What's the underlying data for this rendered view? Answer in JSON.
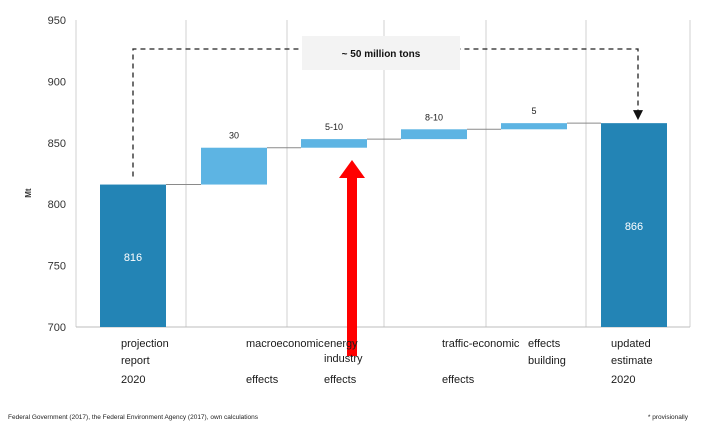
{
  "chart_data": {
    "type": "bar",
    "subtype": "waterfall",
    "ylabel": "Mt",
    "ylim": [
      700,
      950
    ],
    "yticks": [
      700,
      750,
      800,
      850,
      900,
      950
    ],
    "grid": "vertical",
    "bars": [
      {
        "kind": "total",
        "base": 0,
        "value": 816,
        "label": "816",
        "category_lines": [
          "projection",
          "report",
          "2020"
        ]
      },
      {
        "kind": "delta",
        "base": 816,
        "value": 846,
        "label": "30",
        "category_lines": [
          "macroeconomic",
          "",
          "effects"
        ]
      },
      {
        "kind": "delta",
        "base": 846,
        "value": 853,
        "label": "5-10",
        "category_lines": [
          "energy",
          "industry",
          "effects"
        ]
      },
      {
        "kind": "delta",
        "base": 853,
        "value": 861,
        "label": "8-10",
        "category_lines": [
          "traffic-economic",
          "",
          "effects"
        ]
      },
      {
        "kind": "delta",
        "base": 861,
        "value": 866,
        "label": "5",
        "category_lines": [
          "effects",
          "building",
          ""
        ]
      },
      {
        "kind": "total",
        "base": 0,
        "value": 866,
        "label": "866",
        "category_lines": [
          "updated",
          "estimate",
          "2020"
        ]
      }
    ],
    "annotation": {
      "text": "~ 50 million tons",
      "from_bar": 0,
      "to_bar": 5
    },
    "highlight_arrow": {
      "bar": 2,
      "color": "#ff0000"
    }
  },
  "footer": {
    "source": "Federal Government (2017), the Federal Environment Agency (2017), own calculations",
    "note": "* provisionally"
  },
  "colors": {
    "total": "#2384b5",
    "delta": "#5db4e3",
    "grid": "#d0d0d0",
    "connector": "#8a8a8a",
    "arrow": "#ff0000"
  }
}
